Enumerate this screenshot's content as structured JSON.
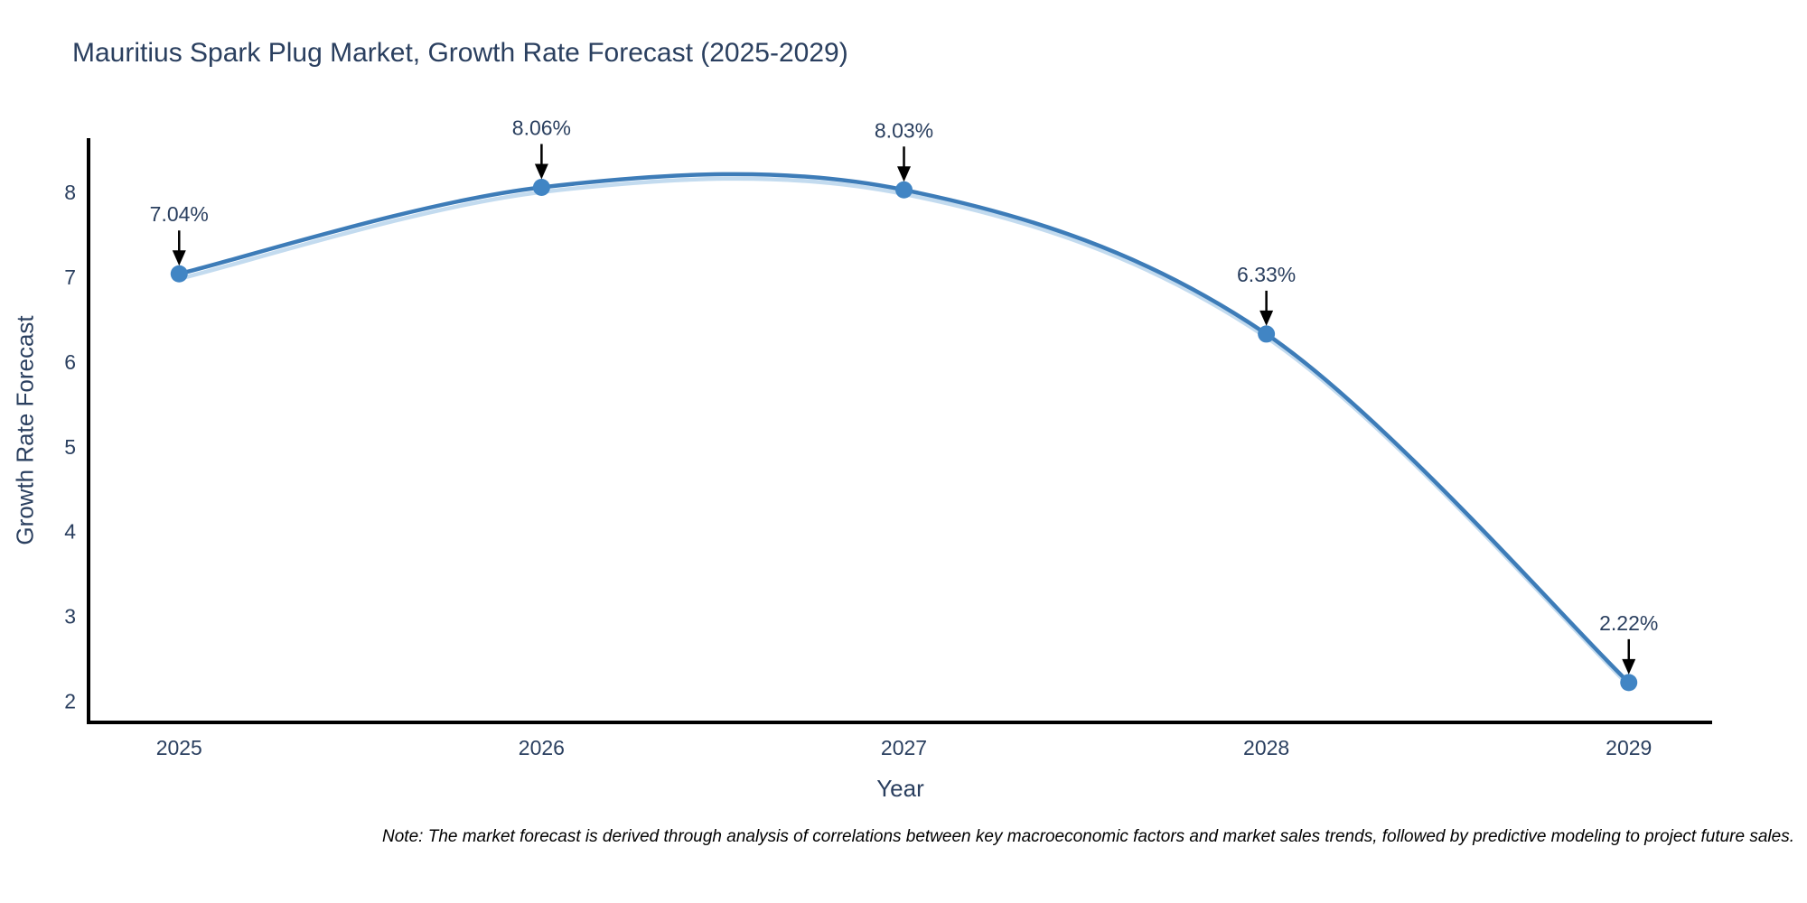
{
  "title": "Mauritius Spark Plug Market, Growth Rate Forecast (2025-2029)",
  "note": "Note: The market forecast is derived through analysis of correlations between key macroeconomic factors and market sales trends, followed by predictive modeling to project future sales.",
  "chart_data": {
    "type": "line",
    "title": "Mauritius Spark Plug Market, Growth Rate Forecast (2025-2029)",
    "xlabel": "Year",
    "ylabel": "Growth Rate Forecast",
    "x": [
      2025,
      2026,
      2027,
      2028,
      2029
    ],
    "values": [
      7.04,
      8.06,
      8.03,
      6.33,
      2.22
    ],
    "point_labels": [
      "7.04%",
      "8.06%",
      "8.03%",
      "6.33%",
      "2.22%"
    ],
    "xticks": [
      2025,
      2026,
      2027,
      2028,
      2029
    ],
    "yticks": [
      2,
      3,
      4,
      5,
      6,
      7,
      8
    ],
    "xlim": [
      2024.75,
      2029.23
    ],
    "ylim": [
      1.75,
      8.64
    ],
    "line_shape": "spline",
    "grid": false,
    "legend": false,
    "colors": {
      "line": "#3d7cb8",
      "line_halo": "#b9d5ec",
      "marker": "#4185c4",
      "arrow": "#000000",
      "axis": "#000000",
      "text": "#2a3f5f",
      "note_text": "#000000",
      "background": "#ffffff"
    }
  }
}
